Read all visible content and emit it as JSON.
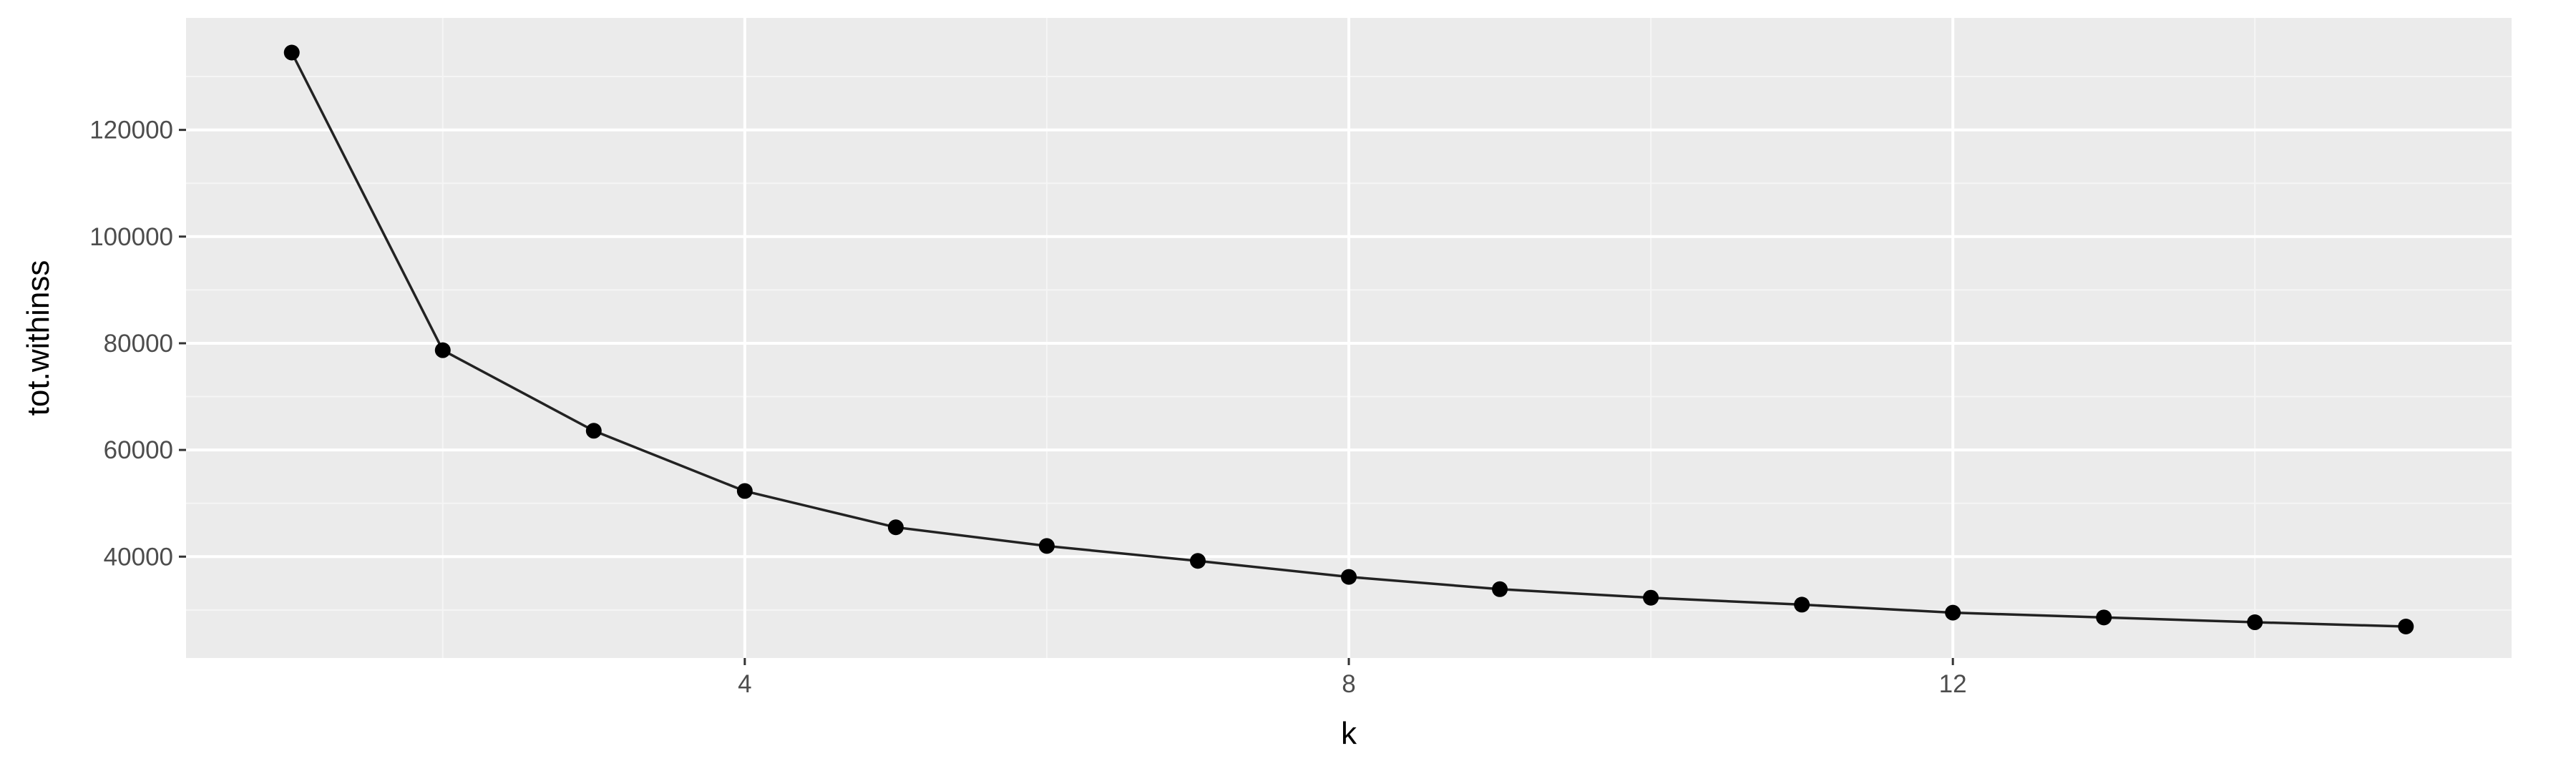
{
  "chart_data": {
    "type": "line",
    "title": "",
    "xlabel": "k",
    "ylabel": "tot.withinss",
    "x": [
      1,
      2,
      3,
      4,
      5,
      6,
      7,
      8,
      9,
      10,
      11,
      12,
      13,
      14,
      15
    ],
    "series": [
      {
        "values": [
          134500,
          78700,
          63600,
          52300,
          45500,
          42000,
          39200,
          36200,
          33900,
          32300,
          31000,
          29500,
          28600,
          27700,
          26900
        ],
        "markers": true
      }
    ],
    "xlim": [
      0.3,
      15.7
    ],
    "ylim": [
      21000,
      141000
    ],
    "x_ticks": [
      4,
      8,
      12
    ],
    "x_tick_labels": [
      "4",
      "8",
      "12"
    ],
    "y_ticks": [
      40000,
      60000,
      80000,
      100000,
      120000
    ],
    "y_tick_labels": [
      "40000",
      "60000",
      "80000",
      "100000",
      "120000"
    ],
    "x_minor_ticks": [
      2,
      6,
      10,
      14
    ],
    "y_minor_ticks": [
      30000,
      50000,
      70000,
      90000,
      110000,
      130000
    ],
    "grid": true,
    "legend": "none",
    "colors": {
      "panel_background": "#ebebeb",
      "grid_major": "#ffffff",
      "grid_minor": "#f5f5f5",
      "line": "#222222",
      "point": "#000000",
      "tick_text": "#4d4d4d",
      "axis_text": "#000000",
      "tick_mark": "#333333"
    }
  }
}
